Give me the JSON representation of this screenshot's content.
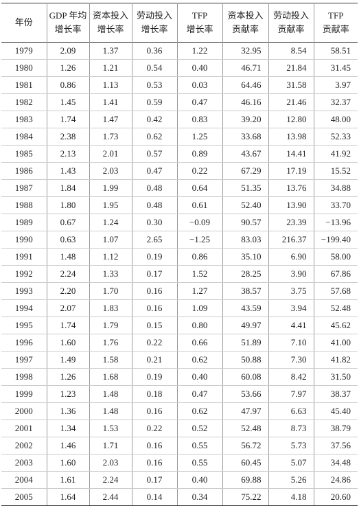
{
  "table": {
    "header": [
      [
        "年份"
      ],
      [
        "GDP 年均",
        "增长率"
      ],
      [
        "资本投入",
        "增长率"
      ],
      [
        "劳动投入",
        "增长率"
      ],
      [
        "TFP",
        "增长率"
      ],
      [
        "资本投入",
        "贡献率"
      ],
      [
        "劳动投入",
        "贡献率"
      ],
      [
        "TFP",
        "贡献率"
      ]
    ],
    "rows": [
      [
        "1979",
        "2.09",
        "1.37",
        "0.36",
        "1.22",
        "32.95",
        "8.54",
        "58.51"
      ],
      [
        "1980",
        "1.26",
        "1.21",
        "0.54",
        "0.40",
        "46.71",
        "21.84",
        "31.45"
      ],
      [
        "1981",
        "0.86",
        "1.13",
        "0.53",
        "0.03",
        "64.46",
        "31.58",
        "3.97"
      ],
      [
        "1982",
        "1.45",
        "1.41",
        "0.59",
        "0.47",
        "46.16",
        "21.46",
        "32.37"
      ],
      [
        "1983",
        "1.74",
        "1.47",
        "0.42",
        "0.83",
        "39.20",
        "12.80",
        "48.00"
      ],
      [
        "1984",
        "2.38",
        "1.73",
        "0.62",
        "1.25",
        "33.68",
        "13.98",
        "52.33"
      ],
      [
        "1985",
        "2.13",
        "2.01",
        "0.57",
        "0.89",
        "43.67",
        "14.41",
        "41.92"
      ],
      [
        "1986",
        "1.43",
        "2.03",
        "0.47",
        "0.22",
        "67.29",
        "17.19",
        "15.52"
      ],
      [
        "1987",
        "1.84",
        "1.99",
        "0.48",
        "0.64",
        "51.35",
        "13.76",
        "34.88"
      ],
      [
        "1988",
        "1.80",
        "1.95",
        "0.48",
        "0.61",
        "52.40",
        "13.90",
        "33.70"
      ],
      [
        "1989",
        "0.67",
        "1.24",
        "0.30",
        "−0.09",
        "90.57",
        "23.39",
        "−13.96"
      ],
      [
        "1990",
        "0.63",
        "1.07",
        "2.65",
        "−1.25",
        "83.03",
        "216.37",
        "−199.40"
      ],
      [
        "1991",
        "1.48",
        "1.12",
        "0.19",
        "0.86",
        "35.10",
        "6.90",
        "58.00"
      ],
      [
        "1992",
        "2.24",
        "1.33",
        "0.17",
        "1.52",
        "28.25",
        "3.90",
        "67.86"
      ],
      [
        "1993",
        "2.20",
        "1.70",
        "0.16",
        "1.27",
        "38.57",
        "3.75",
        "57.68"
      ],
      [
        "1994",
        "2.07",
        "1.83",
        "0.16",
        "1.09",
        "43.59",
        "3.94",
        "52.48"
      ],
      [
        "1995",
        "1.74",
        "1.79",
        "0.15",
        "0.80",
        "49.97",
        "4.41",
        "45.62"
      ],
      [
        "1996",
        "1.60",
        "1.76",
        "0.22",
        "0.66",
        "51.89",
        "7.10",
        "41.00"
      ],
      [
        "1997",
        "1.49",
        "1.58",
        "0.21",
        "0.62",
        "50.88",
        "7.30",
        "41.82"
      ],
      [
        "1998",
        "1.26",
        "1.68",
        "0.19",
        "0.40",
        "60.08",
        "8.42",
        "31.50"
      ],
      [
        "1999",
        "1.23",
        "1.48",
        "0.18",
        "0.47",
        "53.66",
        "7.97",
        "38.37"
      ],
      [
        "2000",
        "1.36",
        "1.48",
        "0.16",
        "0.62",
        "47.97",
        "6.63",
        "45.40"
      ],
      [
        "2001",
        "1.34",
        "1.53",
        "0.22",
        "0.52",
        "52.48",
        "8.73",
        "38.79"
      ],
      [
        "2002",
        "1.46",
        "1.71",
        "0.16",
        "0.55",
        "56.72",
        "5.73",
        "37.56"
      ],
      [
        "2003",
        "1.60",
        "2.03",
        "0.16",
        "0.55",
        "60.45",
        "5.07",
        "34.48"
      ],
      [
        "2004",
        "1.61",
        "2.24",
        "0.17",
        "0.40",
        "69.88",
        "5.26",
        "24.86"
      ],
      [
        "2005",
        "1.64",
        "2.44",
        "0.14",
        "0.34",
        "75.22",
        "4.18",
        "20.60"
      ]
    ]
  }
}
